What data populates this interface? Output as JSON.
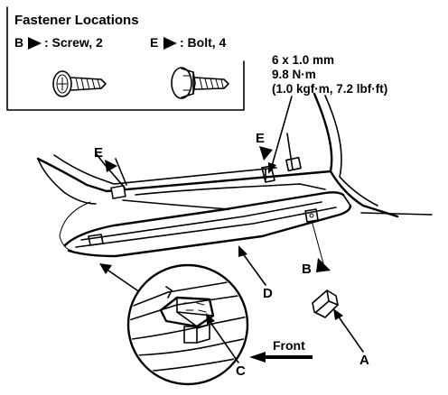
{
  "header": {
    "title": "Fastener Locations"
  },
  "legend": {
    "items": [
      {
        "letter": "B",
        "description": ": Screw, 2",
        "icon": "screw-icon"
      },
      {
        "letter": "E",
        "description": ": Bolt, 4",
        "icon": "bolt-icon"
      }
    ]
  },
  "torque_spec": {
    "size": "6 x 1.0 mm",
    "torque_nm": "9.8 N·m",
    "torque_alt": "(1.0 kgf·m, 7.2 lbf·ft)"
  },
  "callouts": {
    "a": "A",
    "b": "B",
    "c": "C",
    "d": "D",
    "e_left": "E",
    "e_right": "E"
  },
  "direction": {
    "label": "Front"
  }
}
